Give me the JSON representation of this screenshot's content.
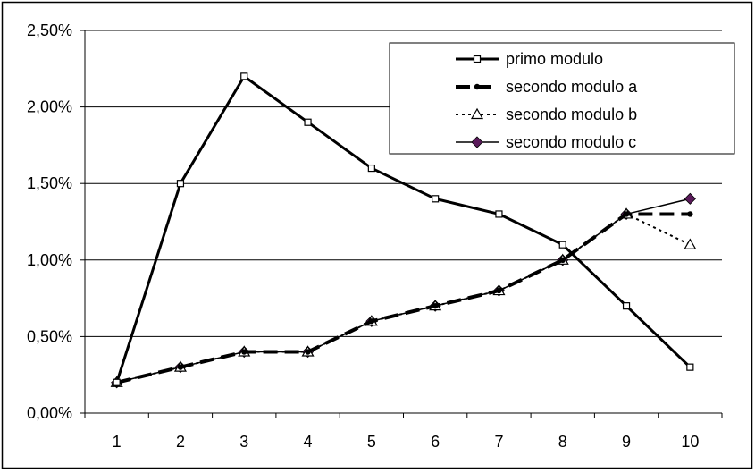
{
  "chart_data": {
    "type": "line",
    "title": "",
    "xlabel": "",
    "ylabel": "",
    "categories": [
      "1",
      "2",
      "3",
      "4",
      "5",
      "6",
      "7",
      "8",
      "9",
      "10"
    ],
    "ylim": [
      0,
      2.5
    ],
    "y_ticks": [
      0,
      0.5,
      1.0,
      1.5,
      2.0,
      2.5
    ],
    "y_tick_labels": [
      "0,00%",
      "0,50%",
      "1,00%",
      "1,50%",
      "2,00%",
      "2,50%"
    ],
    "y_unit": "%",
    "grid": "horizontal",
    "legend_position": "top-right",
    "series": [
      {
        "name": "primo modulo",
        "values": [
          0.2,
          1.5,
          2.2,
          1.9,
          1.6,
          1.4,
          1.3,
          1.1,
          0.7,
          0.3
        ],
        "color": "#000000",
        "line_style": "solid",
        "marker": "open-square"
      },
      {
        "name": "secondo modulo a",
        "values": [
          0.2,
          0.3,
          0.4,
          0.4,
          0.6,
          0.7,
          0.8,
          1.0,
          1.3,
          1.3
        ],
        "color": "#000000",
        "line_style": "dashed",
        "marker": "dot"
      },
      {
        "name": "secondo modulo b",
        "values": [
          0.2,
          0.3,
          0.4,
          0.4,
          0.6,
          0.7,
          0.8,
          1.0,
          1.3,
          1.1
        ],
        "color": "#000000",
        "line_style": "dotted",
        "marker": "open-triangle"
      },
      {
        "name": "secondo modulo c",
        "values": [
          0.2,
          0.3,
          0.4,
          0.4,
          0.6,
          0.7,
          0.8,
          1.0,
          1.3,
          1.4
        ],
        "color": "#000000",
        "marker_color": "#5a1a5a",
        "line_style": "solid-thin",
        "marker": "diamond"
      }
    ]
  }
}
